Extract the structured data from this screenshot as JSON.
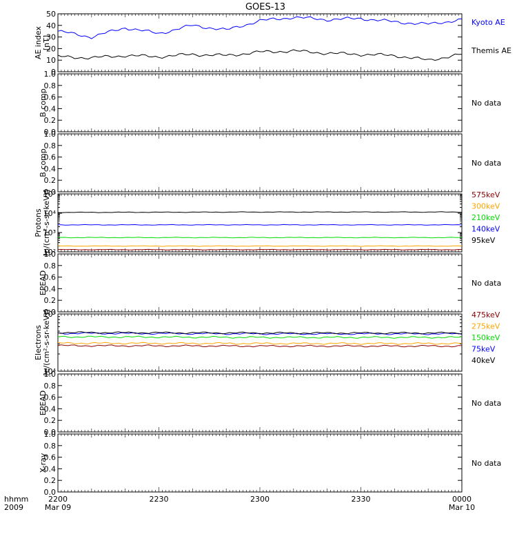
{
  "title": "GOES-13",
  "x_axis": {
    "row_labels": [
      "hhmm",
      "2009"
    ],
    "ticks": [
      {
        "label": "2200",
        "date": "Mar 09"
      },
      {
        "label": "2230",
        "date": ""
      },
      {
        "label": "2300",
        "date": ""
      },
      {
        "label": "2330",
        "date": ""
      },
      {
        "label": "0000",
        "date": "Mar 10"
      }
    ]
  },
  "chart_data": [
    {
      "type": "line",
      "ylabel": [
        "AE index",
        "[nT]"
      ],
      "ylim": [
        0,
        50
      ],
      "yscale": "linear",
      "yticks": [
        "0",
        "10",
        "20",
        "30",
        "40",
        "50"
      ],
      "x": [
        "22:00",
        "22:10",
        "22:20",
        "22:30",
        "22:40",
        "22:50",
        "23:00",
        "23:10",
        "23:20",
        "23:30",
        "23:40",
        "23:50",
        "00:00"
      ],
      "series": [
        {
          "name": "Kyoto AE",
          "color": "#0000ff",
          "values": [
            35,
            30,
            38,
            33,
            40,
            36,
            44,
            47,
            45,
            46,
            43,
            41,
            45
          ]
        },
        {
          "name": "Themis AE",
          "color": "#000000",
          "values": [
            13,
            12,
            14,
            13,
            15,
            14,
            17,
            18,
            16,
            15,
            14,
            10,
            15
          ]
        }
      ],
      "legend_placement": "right"
    },
    {
      "type": "line",
      "ylabel": [
        "B comp"
      ],
      "ylim": [
        0,
        1
      ],
      "yscale": "linear",
      "yticks": [
        "0.0",
        "0.2",
        "0.4",
        "0.6",
        "0.8",
        "1.0"
      ],
      "series": [],
      "note": "No data"
    },
    {
      "type": "line",
      "ylabel": [
        "B comp"
      ],
      "ylim": [
        0,
        1
      ],
      "yscale": "linear",
      "yticks": [
        "0.0",
        "0.2",
        "0.4",
        "0.6",
        "0.8",
        "1.0"
      ],
      "series": [],
      "note": "No data"
    },
    {
      "type": "line",
      "ylabel": [
        "Protons",
        "[p/(cm²-s-sr-keV)]"
      ],
      "ylim": [
        100,
        100000
      ],
      "yscale": "log",
      "yticks": [
        "10²",
        "10³",
        "10⁴",
        "10⁵"
      ],
      "x": [
        "22:00",
        "23:00",
        "00:00"
      ],
      "series": [
        {
          "name": "575keV",
          "color": "#8b0000",
          "values": [
            130,
            130,
            130
          ]
        },
        {
          "name": "300keV",
          "color": "#ffa500",
          "values": [
            200,
            200,
            200
          ]
        },
        {
          "name": "210keV",
          "color": "#00dd00",
          "values": [
            550,
            550,
            550
          ]
        },
        {
          "name": "140keV",
          "color": "#0000ff",
          "values": [
            2500,
            2500,
            2500
          ]
        },
        {
          "name": "95keV",
          "color": "#000000",
          "values": [
            11000,
            11500,
            11500
          ]
        }
      ],
      "legend_placement": "right"
    },
    {
      "type": "line",
      "ylabel": [
        "EPEAD"
      ],
      "ylim": [
        0,
        1
      ],
      "yscale": "linear",
      "yticks": [
        "0.0",
        "0.2",
        "0.4",
        "0.6",
        "0.8",
        "1.0"
      ],
      "series": [],
      "note": "No data"
    },
    {
      "type": "line",
      "ylabel": [
        "Electrons",
        "[e/(cm²-s-sr-keV)]"
      ],
      "ylim": [
        10000,
        100000
      ],
      "yscale": "log",
      "yticks": [
        "10⁴",
        "10⁵"
      ],
      "x": [
        "22:00",
        "23:00",
        "00:00"
      ],
      "series": [
        {
          "name": "475keV",
          "color": "#8b0000",
          "values": [
            28000,
            27500,
            27500
          ]
        },
        {
          "name": "275keV",
          "color": "#ffa500",
          "values": [
            31000,
            30500,
            30500
          ]
        },
        {
          "name": "150keV",
          "color": "#00dd00",
          "values": [
            40000,
            39000,
            39000
          ]
        },
        {
          "name": "75keV",
          "color": "#0000ff",
          "values": [
            46000,
            45000,
            45000
          ]
        },
        {
          "name": "40keV",
          "color": "#000000",
          "values": [
            47500,
            46500,
            46500
          ]
        }
      ],
      "legend_placement": "right"
    },
    {
      "type": "line",
      "ylabel": [
        "EPEAD"
      ],
      "ylim": [
        0,
        1
      ],
      "yscale": "linear",
      "yticks": [
        "0.0",
        "0.2",
        "0.4",
        "0.6",
        "0.8",
        "1.0"
      ],
      "series": [],
      "note": "No data"
    },
    {
      "type": "line",
      "ylabel": [
        "X-ray"
      ],
      "ylim": [
        0,
        1
      ],
      "yscale": "linear",
      "yticks": [
        "0.0",
        "0.2",
        "0.4",
        "0.6",
        "0.8",
        "1.0"
      ],
      "series": [],
      "note": "No data"
    }
  ]
}
